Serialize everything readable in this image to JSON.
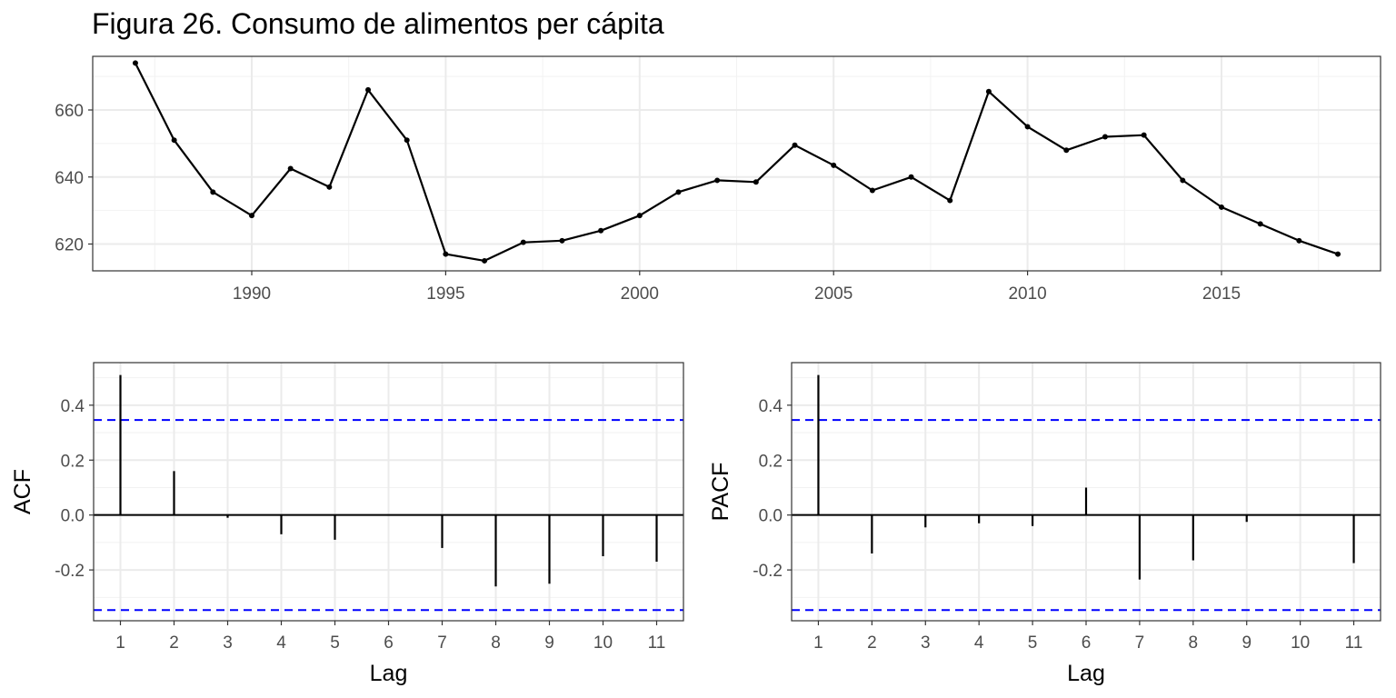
{
  "title": "Figura 26. Consumo de alimentos per cápita",
  "colors": {
    "line": "#000000",
    "ci": "#0000ff",
    "grid_major": "#ebebeb",
    "grid_minor": "#f2f2f2",
    "frame": "#333333"
  },
  "chart_data": [
    {
      "type": "line",
      "panel": "series",
      "x": [
        1987,
        1988,
        1989,
        1990,
        1991,
        1992,
        1993,
        1994,
        1995,
        1996,
        1997,
        1998,
        1999,
        2000,
        2001,
        2002,
        2003,
        2004,
        2005,
        2006,
        2007,
        2008,
        2009,
        2010,
        2011,
        2012,
        2013,
        2014,
        2015,
        2016,
        2017,
        2018
      ],
      "values": [
        674,
        651,
        635.5,
        628.5,
        642.5,
        637,
        666,
        651,
        617,
        615,
        620.5,
        621,
        624,
        628.5,
        635.5,
        639,
        638.5,
        649.5,
        643.5,
        636,
        640,
        633,
        665.5,
        655,
        648,
        652,
        652.5,
        639,
        631,
        626,
        621,
        617
      ],
      "xticks": [
        1990,
        1995,
        2000,
        2005,
        2010,
        2015
      ],
      "yticks": [
        620,
        640,
        660
      ],
      "xlim": [
        1985.9,
        2019.1
      ],
      "ylim": [
        612,
        676
      ],
      "xlabel": "",
      "ylabel": "",
      "grid": true
    },
    {
      "type": "bar",
      "panel": "acf",
      "categories": [
        1,
        2,
        3,
        4,
        5,
        6,
        7,
        8,
        9,
        10,
        11
      ],
      "values": [
        0.51,
        0.16,
        -0.01,
        -0.07,
        -0.09,
        0.0,
        -0.12,
        -0.26,
        -0.25,
        -0.15,
        -0.17
      ],
      "ci": 0.346,
      "yticks": [
        -0.2,
        0.0,
        0.2,
        0.4
      ],
      "ytick_labels": [
        "-0.2",
        "0.0",
        "0.2",
        "0.4"
      ],
      "ylim": [
        -0.385,
        0.555
      ],
      "xlabel": "Lag",
      "ylabel": "ACF",
      "grid": true
    },
    {
      "type": "bar",
      "panel": "pacf",
      "categories": [
        1,
        2,
        3,
        4,
        5,
        6,
        7,
        8,
        9,
        10,
        11
      ],
      "values": [
        0.51,
        -0.14,
        -0.045,
        -0.03,
        -0.04,
        0.1,
        -0.235,
        -0.165,
        -0.025,
        0.0,
        -0.175
      ],
      "ci": 0.346,
      "yticks": [
        -0.2,
        0.0,
        0.2,
        0.4
      ],
      "ytick_labels": [
        "-0.2",
        "0.0",
        "0.2",
        "0.4"
      ],
      "ylim": [
        -0.385,
        0.555
      ],
      "xlabel": "Lag",
      "ylabel": "PACF",
      "grid": true
    }
  ]
}
